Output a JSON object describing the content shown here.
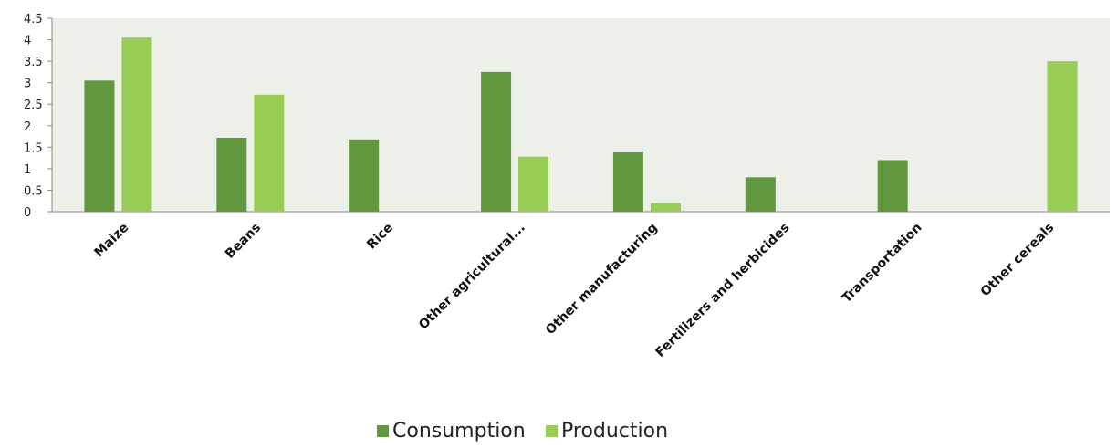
{
  "chart_data": {
    "type": "bar",
    "categories": [
      "Maize",
      "Beans",
      "Rice",
      "Other agricultural...",
      "Other manufacturing",
      "Fertilizers and herbicides",
      "Transportation",
      "Other cereals"
    ],
    "series": [
      {
        "name": "Consumption",
        "color": "#61983f",
        "values": [
          3.05,
          1.72,
          1.68,
          3.25,
          1.38,
          0.8,
          1.2,
          0
        ]
      },
      {
        "name": "Production",
        "color": "#99cc55",
        "values": [
          4.05,
          2.72,
          0,
          1.28,
          0.2,
          0,
          0,
          3.5
        ]
      }
    ],
    "yticks": [
      "0",
      "0.5",
      "1",
      "1.5",
      "2",
      "2.5",
      "3",
      "3.5",
      "4",
      "4.5"
    ],
    "ylim": [
      0,
      4.5
    ],
    "plot_background": "#ecf0e9",
    "title": "",
    "xlabel": "",
    "ylabel": "",
    "grid": false,
    "legend_position": "bottom"
  }
}
